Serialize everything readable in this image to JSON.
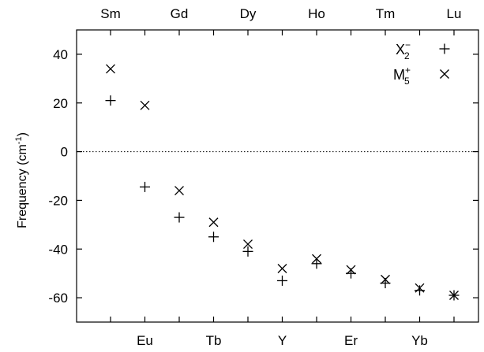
{
  "chart_data": {
    "type": "scatter",
    "ylabel": "Frequency (cm",
    "ylabel_sup": "-1",
    "ylabel_close": ")",
    "ylim": [
      -70,
      50
    ],
    "yticks": [
      40,
      20,
      0,
      -20,
      -40,
      -60
    ],
    "zero_line": true,
    "grid": false,
    "legend_position": "top-right",
    "top_categories": [
      "Sm",
      "Gd",
      "Dy",
      "Ho",
      "Tm",
      "Lu"
    ],
    "bottom_categories": [
      "Eu",
      "Tb",
      "Y",
      "Er",
      "Yb"
    ],
    "x": [
      "Sm",
      "Eu",
      "Gd",
      "Tb",
      "Dy",
      "Y",
      "Ho",
      "Er",
      "Tm",
      "Yb",
      "Lu"
    ],
    "series": [
      {
        "legend_base": "X",
        "legend_sub": "2",
        "legend_sup": "−",
        "marker": "plus",
        "values": [
          21,
          -14.5,
          -27,
          -35,
          -41,
          -53,
          -46,
          -50,
          -54,
          -57,
          -59
        ]
      },
      {
        "legend_base": "M",
        "legend_sub": "5",
        "legend_sup": "+",
        "marker": "cross",
        "values": [
          34,
          19,
          -16,
          -29,
          -38,
          -48,
          -44,
          -48.5,
          -52.5,
          -56,
          -59
        ]
      }
    ]
  }
}
